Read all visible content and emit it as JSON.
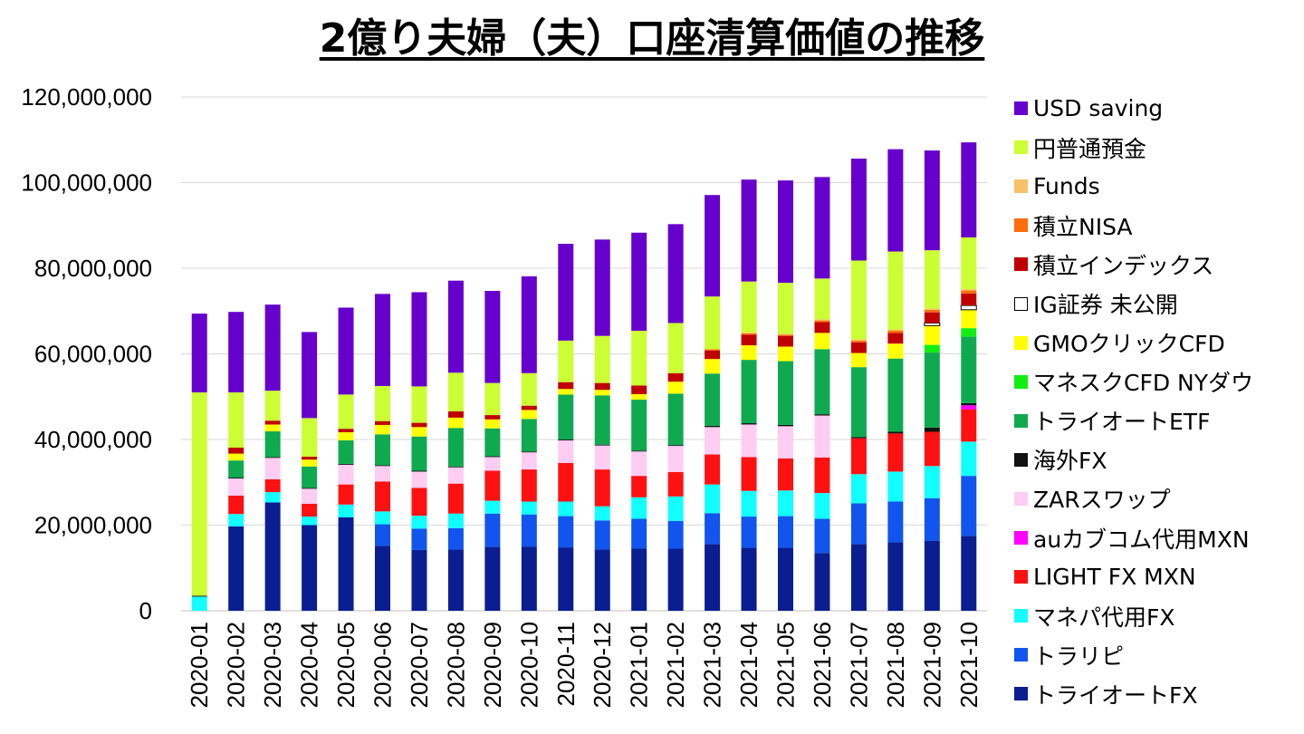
{
  "chart_data": {
    "type": "bar",
    "stacked": true,
    "title": "2億り夫婦（夫）口座清算価値の推移",
    "xlabel": "",
    "ylabel": "",
    "ylim": [
      0,
      120000000
    ],
    "y_ticks": [
      0,
      20000000,
      40000000,
      60000000,
      80000000,
      100000000,
      120000000
    ],
    "y_tick_labels": [
      "0",
      "20,000,000",
      "40,000,000",
      "60,000,000",
      "80,000,000",
      "100,000,000",
      "120,000,000"
    ],
    "grid": true,
    "legend_position": "right",
    "categories": [
      "2020-01",
      "2020-02",
      "2020-03",
      "2020-04",
      "2020-05",
      "2020-06",
      "2020-07",
      "2020-08",
      "2020-09",
      "2020-10",
      "2020-11",
      "2020-12",
      "2021-01",
      "2021-02",
      "2021-03",
      "2021-04",
      "2021-05",
      "2021-06",
      "2021-07",
      "2021-08",
      "2021-09",
      "2021-10"
    ],
    "series": [
      {
        "name": "トライオートFX",
        "color": "#0a1e91",
        "values": [
          0,
          19700000,
          25300000,
          20000000,
          21800000,
          15200000,
          14200000,
          14300000,
          14900000,
          15000000,
          14800000,
          14300000,
          14500000,
          14500000,
          15600000,
          14700000,
          14700000,
          13500000,
          15600000,
          16000000,
          16300000,
          17500000
        ]
      },
      {
        "name": "トラリピ",
        "color": "#1155ee",
        "values": [
          0,
          0,
          0,
          0,
          0,
          5000000,
          5000000,
          5000000,
          7800000,
          7500000,
          7300000,
          6800000,
          7000000,
          6500000,
          7200000,
          7300000,
          7400000,
          8000000,
          9500000,
          9500000,
          10000000,
          14000000
        ]
      },
      {
        "name": "マネパ代用FX",
        "color": "#11ffff",
        "values": [
          3300000,
          2900000,
          2400000,
          2000000,
          3000000,
          3000000,
          3000000,
          3400000,
          3000000,
          3000000,
          3400000,
          3300000,
          5000000,
          5700000,
          6700000,
          6000000,
          6000000,
          6000000,
          6800000,
          7000000,
          7500000,
          8000000
        ]
      },
      {
        "name": "LIGHT FX MXN",
        "color": "#ff1111",
        "values": [
          0,
          4300000,
          3000000,
          3000000,
          4700000,
          7000000,
          6500000,
          7000000,
          7000000,
          7500000,
          9000000,
          8600000,
          5000000,
          5700000,
          7000000,
          7900000,
          7500000,
          8300000,
          8400000,
          8900000,
          8000000,
          7500000
        ]
      },
      {
        "name": "auカブコム代用MXN",
        "color": "#ff00ff",
        "values": [
          0,
          0,
          0,
          0,
          0,
          0,
          0,
          0,
          0,
          0,
          0,
          0,
          0,
          0,
          0,
          0,
          0,
          0,
          0,
          0,
          0,
          1000000
        ]
      },
      {
        "name": "ZARスワップ",
        "color": "#ffccf2",
        "values": [
          0,
          4000000,
          5000000,
          3500000,
          4600000,
          3600000,
          3800000,
          3800000,
          3200000,
          4000000,
          5300000,
          5600000,
          5700000,
          6100000,
          6400000,
          7600000,
          7500000,
          9800000,
          0,
          0,
          0,
          0
        ]
      },
      {
        "name": "海外FX",
        "color": "#111111",
        "values": [
          200000,
          200000,
          200000,
          200000,
          200000,
          200000,
          200000,
          200000,
          200000,
          200000,
          200000,
          200000,
          200000,
          200000,
          300000,
          300000,
          300000,
          300000,
          300000,
          400000,
          1000000,
          500000
        ]
      },
      {
        "name": "トライオートETF",
        "color": "#0faa50",
        "values": [
          0,
          4000000,
          6000000,
          5000000,
          5500000,
          7200000,
          8000000,
          9000000,
          6500000,
          7600000,
          10500000,
          11500000,
          11900000,
          12000000,
          12200000,
          14800000,
          14900000,
          15200000,
          16300000,
          17100000,
          17500000,
          15500000
        ]
      },
      {
        "name": "マネスクCFD NYダウ",
        "color": "#11ee11",
        "values": [
          0,
          0,
          0,
          0,
          0,
          0,
          0,
          0,
          0,
          0,
          0,
          0,
          0,
          0,
          0,
          0,
          0,
          0,
          0,
          0,
          1800000,
          2000000
        ]
      },
      {
        "name": "GMOクリックCFD",
        "color": "#ffff00",
        "values": [
          0,
          1600000,
          1600000,
          1600000,
          1900000,
          2200000,
          2200000,
          2400000,
          2100000,
          2100000,
          1300000,
          1300000,
          1300000,
          2800000,
          3400000,
          3400000,
          3400000,
          3800000,
          3300000,
          3500000,
          4500000,
          4300000
        ]
      },
      {
        "name": "IG証券 未公開",
        "color": "#ffffff",
        "border": "#000000",
        "values": [
          0,
          0,
          0,
          0,
          0,
          0,
          0,
          0,
          0,
          0,
          0,
          0,
          0,
          0,
          0,
          0,
          0,
          0,
          0,
          0,
          600000,
          1000000
        ]
      },
      {
        "name": "積立インデックス",
        "color": "#c00000",
        "values": [
          0,
          1400000,
          900000,
          700000,
          800000,
          900000,
          1000000,
          1500000,
          1000000,
          1000000,
          1600000,
          1600000,
          2000000,
          2000000,
          2000000,
          2500000,
          2500000,
          2500000,
          2500000,
          2500000,
          2500000,
          2800000
        ]
      },
      {
        "name": "積立NISA",
        "color": "#ff6d0b",
        "values": [
          0,
          0,
          0,
          0,
          0,
          0,
          0,
          0,
          0,
          0,
          0,
          0,
          0,
          0,
          300000,
          300000,
          300000,
          400000,
          400000,
          500000,
          600000,
          700000
        ]
      },
      {
        "name": "Funds",
        "color": "#f5c169",
        "values": [
          0,
          0,
          0,
          0,
          0,
          0,
          0,
          0,
          0,
          0,
          0,
          0,
          0,
          0,
          0,
          200000,
          200000,
          300000,
          300000,
          300000,
          300000,
          300000
        ]
      },
      {
        "name": "円普通預金",
        "color": "#ccff33",
        "values": [
          47500000,
          12900000,
          7000000,
          9000000,
          8000000,
          8200000,
          8500000,
          9000000,
          7500000,
          7600000,
          9700000,
          11000000,
          12800000,
          11700000,
          12300000,
          11900000,
          11900000,
          9500000,
          18400000,
          18200000,
          13600000,
          12100000
        ]
      },
      {
        "name": "USD saving",
        "color": "#6600cc",
        "values": [
          18400000,
          18800000,
          20100000,
          20100000,
          20300000,
          21500000,
          22000000,
          21500000,
          21500000,
          22600000,
          22600000,
          22500000,
          22900000,
          23100000,
          23700000,
          23800000,
          23900000,
          23700000,
          23800000,
          23900000,
          23300000,
          22200000
        ]
      }
    ]
  }
}
